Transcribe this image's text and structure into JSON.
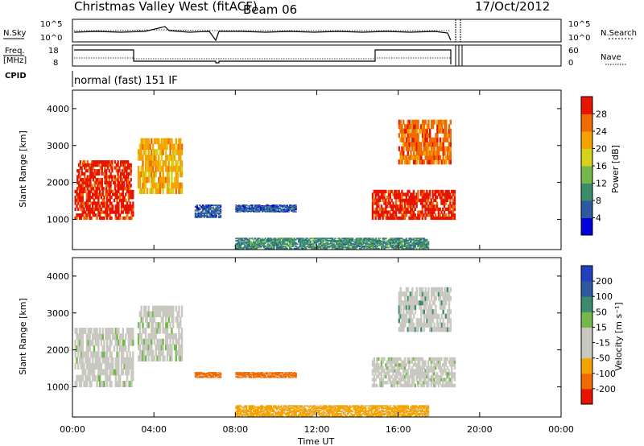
{
  "header": {
    "title": "Christmas Valley West (fitACF)",
    "beam": "Beam 06",
    "date": "17/Oct/2012"
  },
  "top_panels": {
    "nsky_label": "N.Sky",
    "nsearch_label": "N.Search",
    "noise_left_ticks": [
      "10^5",
      "10^0"
    ],
    "noise_right_ticks": [
      "10^5",
      "10^0"
    ],
    "freq_label_1": "Freq.",
    "freq_label_2": "[MHz]",
    "freq_ticks": [
      "18",
      "8"
    ],
    "nave_label": "Nave",
    "nave_ticks": [
      "60",
      "0"
    ],
    "cpid_label": "CPID",
    "cpid_text": "normal (fast) 151 IF"
  },
  "chart_data": [
    {
      "type": "heatmap",
      "name": "power-panel",
      "ylabel": "Slant Range [km]",
      "yticks": [
        "4000",
        "3000",
        "2000",
        "1000"
      ],
      "ylim": [
        180,
        4500
      ],
      "colorbar_label": "Power [dB]",
      "colorbar_ticks": [
        "28",
        "24",
        "20",
        "16",
        "12",
        "8",
        "4"
      ],
      "colorbar_colors": [
        "#0000dd",
        "#2c5aa0",
        "#3b8c6a",
        "#74b74a",
        "#d6d11a",
        "#f4a300",
        "#f06a00",
        "#e81400"
      ],
      "regions": [
        {
          "t": [
            0.1,
            3.0
          ],
          "r": [
            1000,
            1800
          ],
          "c": 7
        },
        {
          "t": [
            0.2,
            2.9
          ],
          "r": [
            1800,
            2600
          ],
          "c": 7
        },
        {
          "t": [
            3.2,
            5.4
          ],
          "r": [
            1700,
            3200
          ],
          "c": 5
        },
        {
          "t": [
            6.0,
            7.3
          ],
          "r": [
            1050,
            1400
          ],
          "c": 1
        },
        {
          "t": [
            8.0,
            11.0
          ],
          "r": [
            1200,
            1400
          ],
          "c": 1
        },
        {
          "t": [
            8.0,
            17.5
          ],
          "r": [
            200,
            500
          ],
          "c": 2
        },
        {
          "t": [
            14.7,
            18.8
          ],
          "r": [
            1000,
            1800
          ],
          "c": 7
        },
        {
          "t": [
            16.0,
            18.6
          ],
          "r": [
            2500,
            3700
          ],
          "c": 6
        }
      ]
    },
    {
      "type": "heatmap",
      "name": "velocity-panel",
      "ylabel": "Slant Range [km]",
      "yticks": [
        "4000",
        "3000",
        "2000",
        "1000"
      ],
      "ylim": [
        180,
        4500
      ],
      "colorbar_label": "Velocity [m s⁻¹]",
      "colorbar_ticks": [
        "200",
        "100",
        "50",
        "15",
        "-15",
        "-50",
        "-100",
        "-200"
      ],
      "colorbar_colors": [
        "#e81400",
        "#f06a00",
        "#f4a300",
        "#c8c8c0",
        "#c8c8c0",
        "#74b74a",
        "#3b8c6a",
        "#2c5aa0",
        "#2040c0"
      ],
      "regions": [
        {
          "t": [
            0.1,
            3.0
          ],
          "r": [
            1000,
            2600
          ],
          "c": 3
        },
        {
          "t": [
            3.2,
            5.4
          ],
          "r": [
            1700,
            3200
          ],
          "c": 3
        },
        {
          "t": [
            6.0,
            7.3
          ],
          "r": [
            1250,
            1400
          ],
          "c": 1
        },
        {
          "t": [
            8.0,
            11.0
          ],
          "r": [
            1250,
            1400
          ],
          "c": 1
        },
        {
          "t": [
            8.0,
            17.5
          ],
          "r": [
            200,
            500
          ],
          "c": 2
        },
        {
          "t": [
            14.7,
            18.8
          ],
          "r": [
            1000,
            1800
          ],
          "c": 3
        },
        {
          "t": [
            16.0,
            18.6
          ],
          "r": [
            2500,
            3700
          ],
          "c": 4
        }
      ]
    }
  ],
  "x_axis": {
    "label": "Time UT",
    "ticks": [
      "00:00",
      "04:00",
      "08:00",
      "12:00",
      "16:00",
      "20:00",
      "00:00"
    ],
    "xlim_hours": [
      0,
      24
    ]
  }
}
